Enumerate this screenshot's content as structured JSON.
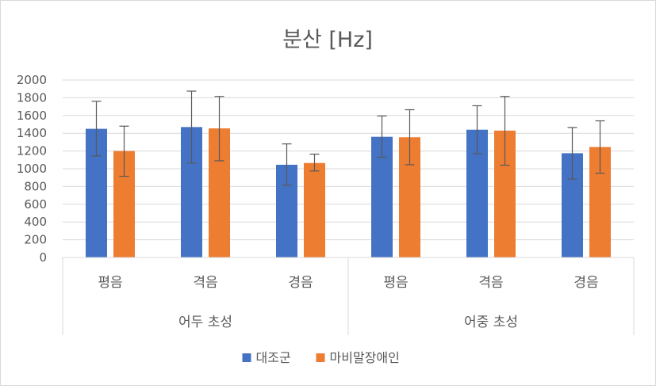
{
  "chart_data": {
    "type": "bar",
    "title": "분산 [Hz]",
    "ylim": [
      0,
      2000
    ],
    "yticks": [
      0,
      200,
      400,
      600,
      800,
      1000,
      1200,
      1400,
      1600,
      1800,
      2000
    ],
    "grid": true,
    "legend_position": "bottom",
    "groups": [
      {
        "label": "어두 초성",
        "categories": [
          "평음",
          "격음",
          "경음"
        ]
      },
      {
        "label": "어중 초성",
        "categories": [
          "평음",
          "격음",
          "경음"
        ]
      }
    ],
    "categories": [
      "평음",
      "격음",
      "경음",
      "평음",
      "격음",
      "경음"
    ],
    "series": [
      {
        "name": "대조군",
        "color": "#4472c4",
        "values": [
          1450,
          1470,
          1045,
          1360,
          1440,
          1175
        ],
        "error_low": [
          1145,
          1065,
          815,
          1130,
          1170,
          885
        ],
        "error_high": [
          1760,
          1875,
          1280,
          1595,
          1710,
          1465
        ]
      },
      {
        "name": "마비말장애인",
        "color": "#ed7d31",
        "values": [
          1200,
          1455,
          1065,
          1355,
          1430,
          1245
        ],
        "error_low": [
          915,
          1090,
          975,
          1045,
          1040,
          950
        ],
        "error_high": [
          1480,
          1815,
          1165,
          1665,
          1815,
          1540
        ]
      }
    ]
  }
}
